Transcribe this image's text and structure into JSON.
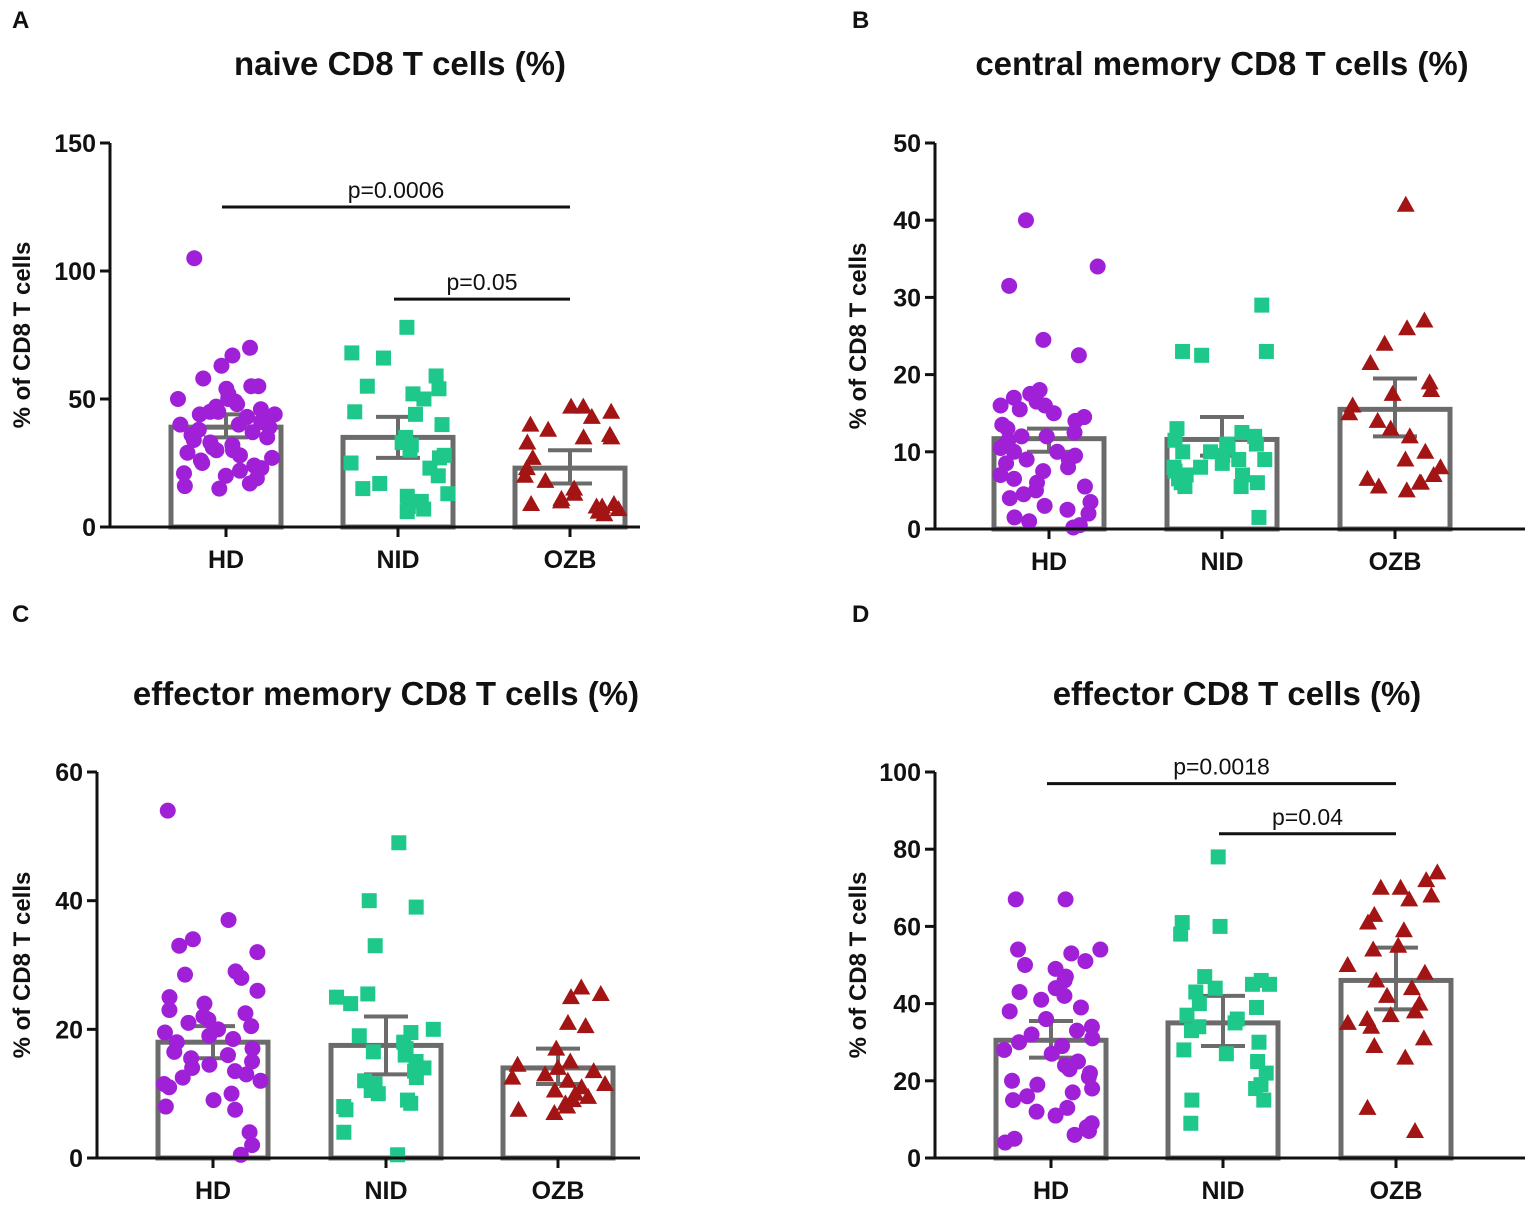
{
  "colors": {
    "HD": "#a020d8",
    "NID": "#1ec88a",
    "OZB": "#a31515",
    "bar": "#6b6b6b",
    "axis": "#111111",
    "text": "#111111"
  },
  "chart_data": [
    {
      "panel": "A",
      "type": "bar",
      "title": "naive CD8 T cells (%)",
      "ylabel": "% of CD8 T cells",
      "ylim": [
        0,
        150
      ],
      "yticks": [
        0,
        50,
        100,
        150
      ],
      "categories": [
        "HD",
        "NID",
        "OZB"
      ],
      "bars": [
        {
          "category": "HD",
          "mean": 39,
          "sem_low": 35,
          "sem_high": 44,
          "marker": "circle",
          "points": [
            105,
            70,
            67,
            63,
            58,
            55,
            55,
            54,
            52,
            50,
            50,
            49,
            48,
            47,
            46,
            45,
            45,
            44,
            44,
            43,
            42,
            41,
            40,
            40,
            39,
            38,
            37,
            36,
            35,
            34,
            33,
            32,
            31,
            30,
            30,
            29,
            28,
            27,
            26,
            25,
            24,
            23,
            22,
            21,
            20,
            19,
            17,
            16,
            15
          ]
        },
        {
          "category": "NID",
          "mean": 35,
          "sem_low": 27,
          "sem_high": 43,
          "marker": "square",
          "points": [
            78,
            68,
            66,
            59,
            55,
            54,
            52,
            50,
            45,
            44,
            40,
            35,
            33,
            32,
            30,
            28,
            27,
            25,
            23,
            20,
            17,
            15,
            13,
            12,
            10,
            8,
            7,
            6
          ]
        },
        {
          "category": "OZB",
          "mean": 23,
          "sem_low": 17,
          "sem_high": 30,
          "marker": "triangle",
          "points": [
            47,
            47,
            45,
            43,
            40,
            38,
            36,
            35,
            35,
            33,
            27,
            23,
            20,
            18,
            15,
            13,
            11,
            10,
            9,
            9,
            8,
            8,
            7,
            6,
            5
          ]
        }
      ],
      "significance": [
        {
          "from": "HD",
          "to": "OZB",
          "label": "p=0.0006",
          "y": 125
        },
        {
          "from": "NID",
          "to": "OZB",
          "label": "p=0.05",
          "y": 89
        }
      ]
    },
    {
      "panel": "B",
      "type": "bar",
      "title": "central memory CD8 T cells (%)",
      "ylabel": "% of CD8 T cells",
      "ylim": [
        0,
        50
      ],
      "yticks": [
        0,
        10,
        20,
        30,
        40,
        50
      ],
      "categories": [
        "HD",
        "NID",
        "OZB"
      ],
      "bars": [
        {
          "category": "HD",
          "mean": 11.7,
          "sem_low": 10,
          "sem_high": 13,
          "marker": "circle",
          "points": [
            40,
            34,
            31.5,
            24.5,
            22.5,
            18,
            17.5,
            17,
            16.5,
            16,
            16,
            15.5,
            15,
            14.5,
            14,
            13.5,
            13,
            12.5,
            12,
            12,
            11.5,
            11,
            10.5,
            10,
            10,
            9.5,
            9,
            9,
            8.5,
            8,
            7.5,
            7,
            6.5,
            6,
            5.5,
            5,
            4.5,
            4,
            3.5,
            3,
            2.5,
            2,
            1.5,
            1,
            0.5,
            0.2
          ]
        },
        {
          "category": "NID",
          "mean": 11.6,
          "sem_low": 9.5,
          "sem_high": 14.5,
          "marker": "square",
          "points": [
            29,
            23,
            23,
            22.5,
            13,
            12.5,
            12,
            11.5,
            11,
            11,
            10.5,
            10,
            10,
            9.5,
            9,
            9,
            8.5,
            8,
            8,
            7.5,
            7,
            7,
            6.5,
            6,
            6,
            5.5,
            5.5,
            1.5
          ]
        },
        {
          "category": "OZB",
          "mean": 15.5,
          "sem_low": 12,
          "sem_high": 19.5,
          "marker": "triangle",
          "points": [
            42,
            27,
            26,
            24,
            21.5,
            19,
            18,
            17.5,
            16,
            15,
            14,
            13,
            12,
            10,
            9,
            8,
            7,
            6.5,
            6,
            6,
            5.5,
            5
          ]
        }
      ],
      "significance": []
    },
    {
      "panel": "C",
      "type": "bar",
      "title": "effector memory CD8 T cells (%)",
      "ylabel": "% of CD8 T cells",
      "ylim": [
        0,
        60
      ],
      "yticks": [
        0,
        20,
        40,
        60
      ],
      "categories": [
        "HD",
        "NID",
        "OZB"
      ],
      "bars": [
        {
          "category": "HD",
          "mean": 18,
          "sem_low": 15.5,
          "sem_high": 20.5,
          "marker": "circle",
          "points": [
            54,
            37,
            34,
            33,
            32,
            29,
            28.5,
            28,
            26,
            25,
            24,
            23,
            22.5,
            22,
            21.5,
            21,
            20.5,
            20,
            19.5,
            19,
            18.5,
            18,
            17,
            16.5,
            16,
            15.5,
            15,
            14.5,
            14,
            13.5,
            13,
            12.5,
            12,
            11.5,
            11,
            10,
            9,
            8,
            7.5,
            4,
            2,
            0.5
          ]
        },
        {
          "category": "NID",
          "mean": 17.5,
          "sem_low": 13,
          "sem_high": 22,
          "marker": "square",
          "points": [
            49,
            40,
            39,
            33,
            25.5,
            25,
            24,
            20,
            19.5,
            19,
            18,
            17,
            16.5,
            16,
            15,
            14,
            13.5,
            12.5,
            12,
            11.5,
            10.5,
            10,
            9,
            8.5,
            8,
            7.5,
            4,
            0.5
          ]
        },
        {
          "category": "OZB",
          "mean": 14,
          "sem_low": 11.5,
          "sem_high": 17,
          "marker": "triangle",
          "points": [
            26.5,
            25.5,
            25,
            21,
            20.5,
            17,
            15,
            14.5,
            14,
            13.5,
            13,
            12.5,
            12,
            11.5,
            11,
            10.5,
            10,
            9.5,
            9,
            8.5,
            8,
            7.5,
            7
          ]
        }
      ],
      "significance": []
    },
    {
      "panel": "D",
      "type": "bar",
      "title": "effector CD8 T cells (%)",
      "ylabel": "% of CD8 T cells",
      "ylim": [
        0,
        100
      ],
      "yticks": [
        0,
        20,
        40,
        60,
        80,
        100
      ],
      "categories": [
        "HD",
        "NID",
        "OZB"
      ],
      "bars": [
        {
          "category": "HD",
          "mean": 30.5,
          "sem_low": 26,
          "sem_high": 35.5,
          "marker": "circle",
          "points": [
            67,
            67,
            54,
            54,
            53,
            51,
            50,
            49,
            47,
            46,
            44,
            43,
            42,
            41,
            39,
            38,
            36,
            34,
            33,
            32,
            31,
            30,
            29,
            28,
            27,
            25,
            24,
            23,
            22,
            21,
            20,
            19,
            18,
            17,
            16,
            15,
            13,
            12,
            11,
            9,
            8,
            7,
            6,
            5,
            4
          ]
        },
        {
          "category": "NID",
          "mean": 35,
          "sem_low": 29,
          "sem_high": 42,
          "marker": "square",
          "points": [
            78,
            61,
            60,
            58,
            47,
            46,
            45,
            45,
            44,
            43,
            40,
            39,
            37,
            36,
            35,
            34,
            33,
            30,
            28,
            27,
            25,
            22,
            19,
            18,
            15,
            15,
            9
          ]
        },
        {
          "category": "OZB",
          "mean": 46,
          "sem_low": 38.5,
          "sem_high": 54.5,
          "marker": "triangle",
          "points": [
            74,
            72,
            70,
            70,
            68,
            67,
            63,
            61,
            59,
            55,
            54,
            50,
            48,
            46,
            44,
            42,
            40,
            38,
            37,
            36,
            35,
            34,
            31,
            29,
            26,
            13,
            7
          ]
        }
      ],
      "significance": [
        {
          "from": "HD",
          "to": "OZB",
          "label": "p=0.0018",
          "y": 97
        },
        {
          "from": "NID",
          "to": "OZB",
          "label": "p=0.04",
          "y": 84
        }
      ]
    }
  ]
}
